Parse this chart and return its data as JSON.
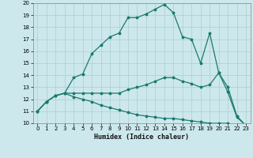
{
  "xlabel": "Humidex (Indice chaleur)",
  "bg_color": "#cce8ec",
  "grid_color": "#aacdd4",
  "line_color": "#1a7a6e",
  "xlim": [
    -0.5,
    23.5
  ],
  "ylim": [
    10,
    20
  ],
  "xticks": [
    0,
    1,
    2,
    3,
    4,
    5,
    6,
    7,
    8,
    9,
    10,
    11,
    12,
    13,
    14,
    15,
    16,
    17,
    18,
    19,
    20,
    21,
    22,
    23
  ],
  "yticks": [
    10,
    11,
    12,
    13,
    14,
    15,
    16,
    17,
    18,
    19,
    20
  ],
  "line1_x": [
    0,
    1,
    2,
    3,
    4,
    5,
    6,
    7,
    8,
    9,
    10,
    11,
    12,
    13,
    14,
    15,
    16,
    17,
    18,
    19,
    20,
    21,
    22,
    23
  ],
  "line1_y": [
    11.0,
    11.8,
    12.3,
    12.5,
    13.8,
    14.1,
    15.8,
    16.5,
    17.2,
    17.5,
    18.8,
    18.8,
    19.1,
    19.5,
    19.9,
    19.2,
    17.2,
    17.0,
    15.0,
    17.5,
    14.2,
    12.6,
    10.5,
    9.8
  ],
  "line2_x": [
    0,
    1,
    2,
    3,
    4,
    5,
    6,
    7,
    8,
    9,
    10,
    11,
    12,
    13,
    14,
    15,
    16,
    17,
    18,
    19,
    20,
    21,
    22,
    23
  ],
  "line2_y": [
    11.0,
    11.8,
    12.3,
    12.5,
    12.5,
    12.5,
    12.5,
    12.5,
    12.5,
    12.5,
    12.8,
    13.0,
    13.2,
    13.5,
    13.8,
    13.8,
    13.5,
    13.3,
    13.0,
    13.2,
    14.2,
    13.0,
    10.6,
    9.8
  ],
  "line3_x": [
    0,
    1,
    2,
    3,
    4,
    5,
    6,
    7,
    8,
    9,
    10,
    11,
    12,
    13,
    14,
    15,
    16,
    17,
    18,
    19,
    20,
    21,
    22,
    23
  ],
  "line3_y": [
    11.0,
    11.8,
    12.3,
    12.5,
    12.2,
    12.0,
    11.8,
    11.5,
    11.3,
    11.1,
    10.9,
    10.7,
    10.6,
    10.5,
    10.4,
    10.4,
    10.3,
    10.2,
    10.1,
    10.0,
    10.0,
    10.0,
    9.8,
    9.8
  ]
}
